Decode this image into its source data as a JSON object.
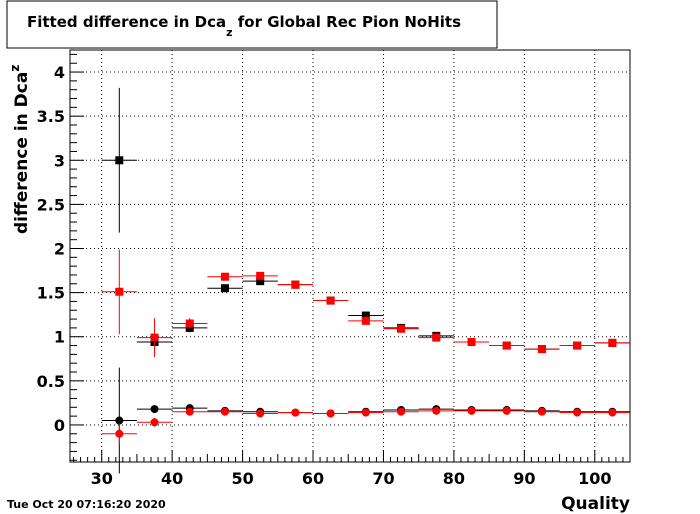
{
  "chart_data": {
    "type": "scatter",
    "title": {
      "prefix": "Fitted difference in Dca",
      "subscript": "z",
      "suffix": " for Global Rec Pion NoHits"
    },
    "xlabel": "Quality",
    "ylabel": {
      "main": "difference in Dca",
      "subscript": "z"
    },
    "timestamp": "Tue Oct 20 07:16:20 2020",
    "xlim": [
      25.5,
      105
    ],
    "ylim": [
      -0.42,
      4.25
    ],
    "x_ticks": [
      30,
      40,
      50,
      60,
      70,
      80,
      90,
      100
    ],
    "y_ticks": [
      0,
      0.5,
      1,
      1.5,
      2,
      2.5,
      3,
      3.5,
      4
    ],
    "y_tick_labels": [
      "0",
      "0.5",
      "1",
      "1.5",
      "2",
      "2.5",
      "3",
      "3.5",
      "4"
    ],
    "grid": true,
    "bin_halfwidth": 2.5,
    "colors": {
      "black": "#000000",
      "red": "#ff0000"
    },
    "series": [
      {
        "color": "black",
        "marker": "square",
        "points": [
          {
            "x": 32.5,
            "y": 3.0,
            "err": 0.82
          },
          {
            "x": 37.5,
            "y": 0.94,
            "err": 0.05
          },
          {
            "x": 42.5,
            "y": 1.1,
            "err": 0.05
          },
          {
            "x": 47.5,
            "y": 1.55,
            "err": 0.02
          },
          {
            "x": 52.5,
            "y": 1.63,
            "err": 0.02
          },
          {
            "x": 57.5,
            "y": 1.59,
            "err": 0.02
          },
          {
            "x": 62.5,
            "y": 1.41,
            "err": 0.02
          },
          {
            "x": 67.5,
            "y": 1.24,
            "err": 0.02
          },
          {
            "x": 72.5,
            "y": 1.1,
            "err": 0.02
          },
          {
            "x": 77.5,
            "y": 1.01,
            "err": 0.02
          },
          {
            "x": 82.5,
            "y": 0.94,
            "err": 0.02
          },
          {
            "x": 87.5,
            "y": 0.9,
            "err": 0.02
          },
          {
            "x": 92.5,
            "y": 0.86,
            "err": 0.02
          },
          {
            "x": 97.5,
            "y": 0.9,
            "err": 0.02
          },
          {
            "x": 102.5,
            "y": 0.93,
            "err": 0.02
          }
        ]
      },
      {
        "color": "red",
        "marker": "square",
        "points": [
          {
            "x": 32.5,
            "y": 1.51,
            "err": 0.48
          },
          {
            "x": 37.5,
            "y": 0.99,
            "err": 0.22
          },
          {
            "x": 42.5,
            "y": 1.15,
            "err": 0.06
          },
          {
            "x": 47.5,
            "y": 1.68,
            "err": 0.03
          },
          {
            "x": 52.5,
            "y": 1.69,
            "err": 0.03
          },
          {
            "x": 57.5,
            "y": 1.59,
            "err": 0.02
          },
          {
            "x": 62.5,
            "y": 1.41,
            "err": 0.02
          },
          {
            "x": 67.5,
            "y": 1.18,
            "err": 0.02
          },
          {
            "x": 72.5,
            "y": 1.09,
            "err": 0.02
          },
          {
            "x": 77.5,
            "y": 0.99,
            "err": 0.02
          },
          {
            "x": 82.5,
            "y": 0.94,
            "err": 0.02
          },
          {
            "x": 87.5,
            "y": 0.9,
            "err": 0.02
          },
          {
            "x": 92.5,
            "y": 0.86,
            "err": 0.02
          },
          {
            "x": 97.5,
            "y": 0.9,
            "err": 0.02
          },
          {
            "x": 102.5,
            "y": 0.93,
            "err": 0.02
          }
        ]
      },
      {
        "color": "black",
        "marker": "circle",
        "points": [
          {
            "x": 32.5,
            "y": 0.05,
            "err": 0.6
          },
          {
            "x": 37.5,
            "y": 0.18,
            "err": 0.04
          },
          {
            "x": 42.5,
            "y": 0.19,
            "err": 0.02
          },
          {
            "x": 47.5,
            "y": 0.16,
            "err": 0.02
          },
          {
            "x": 52.5,
            "y": 0.15,
            "err": 0.02
          },
          {
            "x": 57.5,
            "y": 0.14,
            "err": 0.02
          },
          {
            "x": 62.5,
            "y": 0.13,
            "err": 0.02
          },
          {
            "x": 67.5,
            "y": 0.15,
            "err": 0.02
          },
          {
            "x": 72.5,
            "y": 0.17,
            "err": 0.02
          },
          {
            "x": 77.5,
            "y": 0.18,
            "err": 0.02
          },
          {
            "x": 82.5,
            "y": 0.17,
            "err": 0.02
          },
          {
            "x": 87.5,
            "y": 0.17,
            "err": 0.02
          },
          {
            "x": 92.5,
            "y": 0.16,
            "err": 0.02
          },
          {
            "x": 97.5,
            "y": 0.15,
            "err": 0.02
          },
          {
            "x": 102.5,
            "y": 0.15,
            "err": 0.02
          }
        ]
      },
      {
        "color": "red",
        "marker": "circle",
        "points": [
          {
            "x": 32.5,
            "y": -0.1,
            "err": 0.12
          },
          {
            "x": 37.5,
            "y": 0.03,
            "err": 0.05
          },
          {
            "x": 42.5,
            "y": 0.15,
            "err": 0.02
          },
          {
            "x": 47.5,
            "y": 0.15,
            "err": 0.02
          },
          {
            "x": 52.5,
            "y": 0.13,
            "err": 0.02
          },
          {
            "x": 57.5,
            "y": 0.14,
            "err": 0.02
          },
          {
            "x": 62.5,
            "y": 0.13,
            "err": 0.02
          },
          {
            "x": 67.5,
            "y": 0.14,
            "err": 0.02
          },
          {
            "x": 72.5,
            "y": 0.15,
            "err": 0.02
          },
          {
            "x": 77.5,
            "y": 0.16,
            "err": 0.02
          },
          {
            "x": 82.5,
            "y": 0.16,
            "err": 0.02
          },
          {
            "x": 87.5,
            "y": 0.16,
            "err": 0.02
          },
          {
            "x": 92.5,
            "y": 0.15,
            "err": 0.02
          },
          {
            "x": 97.5,
            "y": 0.14,
            "err": 0.02
          },
          {
            "x": 102.5,
            "y": 0.14,
            "err": 0.02
          }
        ]
      }
    ]
  }
}
